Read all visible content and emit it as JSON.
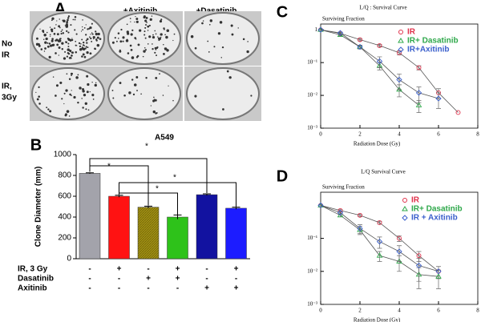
{
  "panel_a": {
    "label": "A",
    "columns": [
      "+Axitinib",
      "+Dasatinib"
    ],
    "rows": [
      [
        "No",
        "IR"
      ],
      [
        "IR,",
        "3Gy"
      ]
    ]
  },
  "chart_data": [
    {
      "type": "bar",
      "panel_label": "B",
      "title": "A549",
      "y_label": "Clone Diameter (mm)",
      "categories": [
        null,
        null,
        null,
        null,
        null,
        null
      ],
      "values": [
        820,
        600,
        495,
        400,
        615,
        485
      ],
      "errors": [
        5,
        10,
        10,
        20,
        8,
        10
      ],
      "colors": [
        "#a3a3ab",
        "#ff1212",
        "#a39212",
        "#2ec21a",
        "#1212a0",
        "#1c1cff"
      ],
      "ylim": [
        0,
        1000
      ],
      "yticks": [
        0,
        200,
        400,
        600,
        800,
        1000
      ],
      "annotations": [
        "*",
        "*",
        "*",
        "*"
      ],
      "treatments": [
        {
          "name": "IR, 3 Gy",
          "signs": [
            "-",
            "+",
            "-",
            "+",
            "-",
            "+"
          ]
        },
        {
          "name": "Dasatinib",
          "signs": [
            "-",
            "-",
            "+",
            "+",
            "-",
            "-"
          ]
        },
        {
          "name": "Axitinib",
          "signs": [
            "-",
            "-",
            "-",
            "-",
            "+",
            "+"
          ]
        }
      ]
    },
    {
      "type": "scatter",
      "panel_label": "C",
      "title": "L/Q : Survival Curve",
      "y_label": "Surviving Fraction",
      "x_label": "Radiation Dose (Gy)",
      "log_y": true,
      "xlim": [
        0,
        8
      ],
      "xticks": [
        0,
        2,
        4,
        6,
        8
      ],
      "ylim": [
        0.001,
        1.5
      ],
      "yticks": [
        1,
        {
          "value": 0.1,
          "label": "10⁻¹"
        },
        {
          "value": 0.01,
          "label": "10⁻²"
        },
        {
          "value": 0.001,
          "label": "10⁻³"
        }
      ],
      "x": [
        0,
        1,
        2,
        3,
        4,
        5,
        6,
        7
      ],
      "series": [
        {
          "name": "IR",
          "color": "#e0304a",
          "marker": "circle",
          "values": [
            1,
            0.78,
            0.5,
            0.33,
            0.2,
            0.07,
            0.012,
            0.003
          ],
          "errors": [
            0,
            0.05,
            0.04,
            0.03,
            0.03,
            0.01,
            0.004,
            0
          ]
        },
        {
          "name": "IR+ Dasatinib",
          "color": "#2ea84a",
          "marker": "triangle",
          "values": [
            1,
            0.7,
            0.3,
            0.08,
            0.015,
            0.005,
            null,
            null
          ],
          "errors": [
            0,
            0.05,
            0.03,
            0.02,
            0.006,
            0.002,
            null,
            null
          ]
        },
        {
          "name": "IR+Axitinib",
          "color": "#3a5fcc",
          "marker": "diamond",
          "values": [
            1,
            0.8,
            0.3,
            0.11,
            0.03,
            0.012,
            0.008,
            null
          ],
          "errors": [
            0,
            0.05,
            0.04,
            0.04,
            0.015,
            0.006,
            0.004,
            null
          ]
        }
      ]
    },
    {
      "type": "scatter",
      "panel_label": "D",
      "title": "L/Q   Survival Curve",
      "y_label": "Surviving Fraction",
      "x_label": "Radiation Dose (Gy)",
      "log_y": true,
      "xlim": [
        0,
        8
      ],
      "xticks": [
        0,
        2,
        4,
        6,
        8
      ],
      "ylim": [
        0.001,
        2.5
      ],
      "yticks": [
        {
          "value": 0.1,
          "label": "10⁻¹"
        },
        {
          "value": 0.01,
          "label": "10⁻²"
        },
        {
          "value": 0.001,
          "label": "10⁻³"
        }
      ],
      "x": [
        0,
        1,
        2,
        3,
        4,
        5,
        6
      ],
      "series": [
        {
          "name": "IR",
          "color": "#e0304a",
          "marker": "circle",
          "values": [
            1,
            0.7,
            0.5,
            0.3,
            0.1,
            0.03,
            0.01
          ],
          "errors": [
            0,
            0.05,
            0.04,
            0.03,
            0.02,
            0.01,
            0.004
          ]
        },
        {
          "name": "IR+ Dasatinib",
          "color": "#2ea84a",
          "marker": "triangle",
          "values": [
            1,
            0.5,
            0.18,
            0.03,
            0.02,
            0.008,
            0.007
          ],
          "errors": [
            0,
            0.05,
            0.05,
            0.01,
            0.01,
            0.005,
            0.004
          ]
        },
        {
          "name": "IR + Axitinib",
          "color": "#3a5fcc",
          "marker": "diamond",
          "values": [
            1,
            0.6,
            0.2,
            0.08,
            0.04,
            0.015,
            0.01
          ],
          "errors": [
            0,
            0.05,
            0.06,
            0.03,
            0.02,
            0.01,
            0.012
          ]
        }
      ]
    }
  ]
}
